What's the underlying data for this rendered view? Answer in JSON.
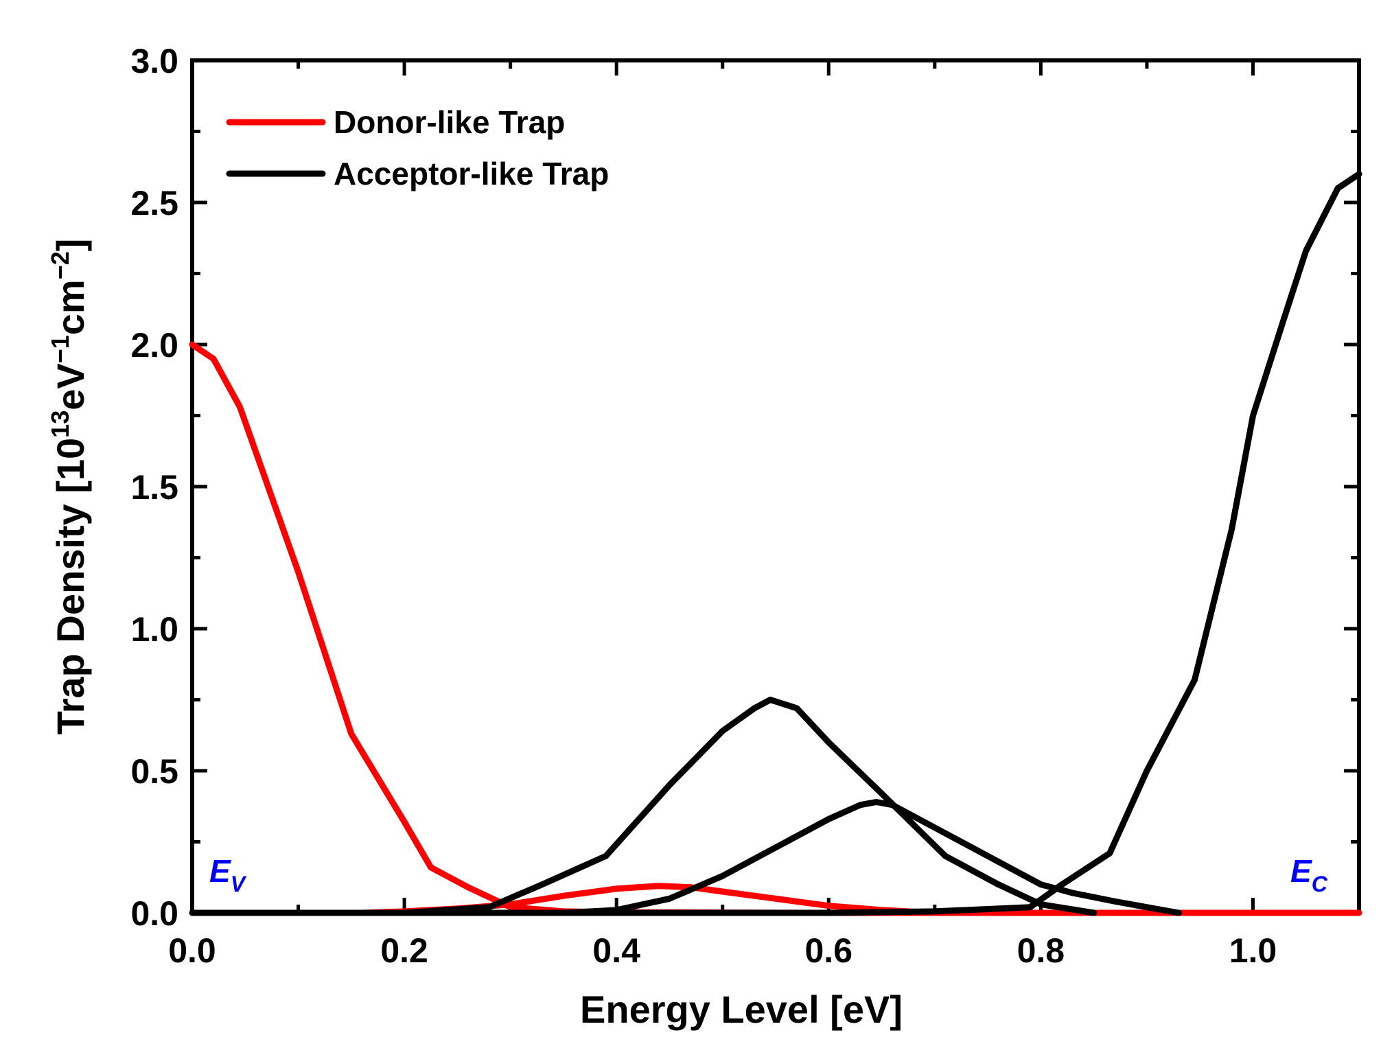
{
  "chart_data": {
    "type": "line",
    "title": "",
    "xlabel": "Energy Level [eV]",
    "ylabel": {
      "main": "Trap Density [10",
      "exp1": "13",
      "unit1": "eV",
      "exp2": "−1",
      "unit2": "cm",
      "exp3": "−2",
      "close": "]"
    },
    "xlim": [
      0,
      1.1
    ],
    "ylim": [
      0,
      3.0
    ],
    "xticks": [
      0.0,
      0.2,
      0.4,
      0.6,
      0.8,
      1.0
    ],
    "xtick_labels": [
      "0.0",
      "0.2",
      "0.4",
      "0.6",
      "0.8",
      "1.0"
    ],
    "yticks": [
      0.0,
      0.5,
      1.0,
      1.5,
      2.0,
      2.5,
      3.0
    ],
    "ytick_labels": [
      "0.0",
      "0.5",
      "1.0",
      "1.5",
      "2.0",
      "2.5",
      "3.0"
    ],
    "grid": false,
    "legend_position": "top-left",
    "legend": [
      {
        "label": "Donor-like Trap",
        "color": "#ff0000"
      },
      {
        "label": "Acceptor-like Trap",
        "color": "#000000"
      }
    ],
    "annotations": {
      "ev": {
        "main": "E",
        "sub": "V",
        "color": "#0000ff"
      },
      "ec": {
        "main": "E",
        "sub": "C",
        "color": "#0000ff"
      }
    },
    "series": [
      {
        "name": "Donor-like Trap (band tail)",
        "group": "Donor-like Trap",
        "color": "#ff0000",
        "x": [
          0.0,
          0.02,
          0.045,
          0.1,
          0.15,
          0.2,
          0.225,
          0.26,
          0.3,
          0.35,
          0.4,
          0.5,
          0.6,
          0.7,
          0.8,
          1.0,
          1.1
        ],
        "y": [
          2.0,
          1.95,
          1.78,
          1.2,
          0.63,
          0.32,
          0.16,
          0.09,
          0.02,
          0.005,
          0.002,
          0.001,
          0.0,
          0.0,
          0.0,
          0.0,
          0.0
        ]
      },
      {
        "name": "Donor-like Trap (Gaussian)",
        "group": "Donor-like Trap",
        "color": "#ff0000",
        "x": [
          0.16,
          0.2,
          0.25,
          0.3,
          0.35,
          0.4,
          0.44,
          0.47,
          0.5,
          0.55,
          0.6,
          0.65,
          0.7
        ],
        "y": [
          0.0,
          0.005,
          0.015,
          0.03,
          0.06,
          0.085,
          0.095,
          0.09,
          0.075,
          0.05,
          0.025,
          0.01,
          0.0
        ]
      },
      {
        "name": "Acceptor-like Trap (band tail)",
        "group": "Acceptor-like Trap",
        "color": "#000000",
        "x": [
          0.0,
          0.4,
          0.6,
          0.7,
          0.79,
          0.82,
          0.865,
          0.9,
          0.945,
          0.98,
          1.0,
          1.03,
          1.05,
          1.08,
          1.1
        ],
        "y": [
          0.0,
          0.0,
          0.0,
          0.005,
          0.02,
          0.1,
          0.21,
          0.5,
          0.82,
          1.35,
          1.75,
          2.1,
          2.33,
          2.55,
          2.6
        ]
      },
      {
        "name": "Acceptor-like Trap (Gaussian A)",
        "group": "Acceptor-like Trap",
        "color": "#000000",
        "x": [
          0.2,
          0.28,
          0.33,
          0.39,
          0.45,
          0.5,
          0.53,
          0.545,
          0.57,
          0.6,
          0.65,
          0.71,
          0.76,
          0.8,
          0.85
        ],
        "y": [
          0.0,
          0.02,
          0.1,
          0.2,
          0.45,
          0.64,
          0.72,
          0.75,
          0.72,
          0.6,
          0.42,
          0.2,
          0.1,
          0.03,
          0.0
        ]
      },
      {
        "name": "Acceptor-like Trap (Gaussian B)",
        "group": "Acceptor-like Trap",
        "color": "#000000",
        "x": [
          0.35,
          0.4,
          0.45,
          0.5,
          0.55,
          0.6,
          0.63,
          0.645,
          0.66,
          0.7,
          0.75,
          0.8,
          0.83,
          0.87,
          0.93
        ],
        "y": [
          0.0,
          0.01,
          0.05,
          0.13,
          0.23,
          0.33,
          0.38,
          0.39,
          0.38,
          0.3,
          0.2,
          0.1,
          0.07,
          0.04,
          0.0
        ]
      }
    ]
  }
}
